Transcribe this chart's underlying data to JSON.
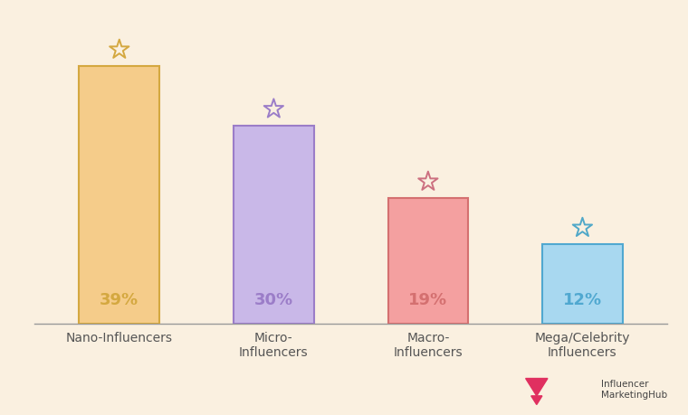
{
  "categories": [
    "Nano-Influencers",
    "Micro-\nInfluencers",
    "Macro-\nInfluencers",
    "Mega/Celebrity\nInfluencers"
  ],
  "values": [
    39,
    30,
    19,
    12
  ],
  "labels": [
    "39%",
    "30%",
    "19%",
    "12%"
  ],
  "bar_colors": [
    "#F5CC8A",
    "#C9B8E8",
    "#F4A0A0",
    "#A8D8F0"
  ],
  "bar_edge_colors": [
    "#D4A840",
    "#9B7DC8",
    "#D47070",
    "#50A8D0"
  ],
  "star_face_colors": [
    "none",
    "none",
    "none",
    "none"
  ],
  "star_edge_colors": [
    "#D4A840",
    "#9B7DC8",
    "#CC7080",
    "#50A8C8"
  ],
  "background_color": "#FAF0E0",
  "text_color": "#555555",
  "label_fontsize": 13,
  "tick_fontsize": 10,
  "ylim": [
    0,
    46
  ],
  "bar_width": 0.52,
  "logo_text_color": "#444444",
  "logo_icon_color": "#E03060"
}
